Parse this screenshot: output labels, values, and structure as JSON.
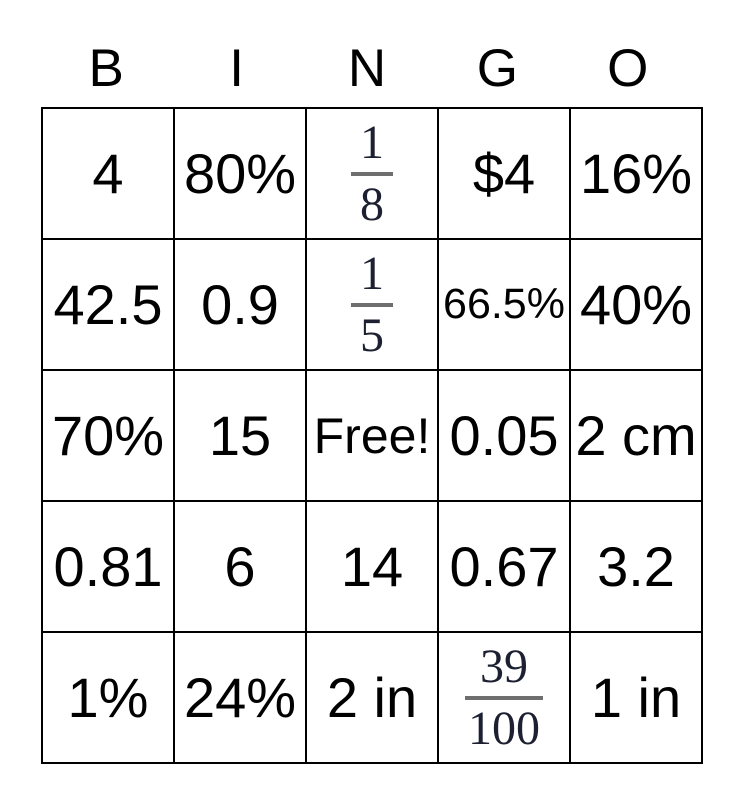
{
  "card": {
    "header_letters": [
      "B",
      "I",
      "N",
      "G",
      "O"
    ],
    "grid": {
      "rows": [
        [
          {
            "type": "text",
            "value": "4"
          },
          {
            "type": "text",
            "value": "80%"
          },
          {
            "type": "fraction",
            "numerator": "1",
            "denominator": "8"
          },
          {
            "type": "text",
            "value": "$4"
          },
          {
            "type": "text",
            "value": "16%"
          }
        ],
        [
          {
            "type": "text",
            "value": "42.5"
          },
          {
            "type": "text",
            "value": "0.9"
          },
          {
            "type": "fraction",
            "numerator": "1",
            "denominator": "5"
          },
          {
            "type": "text",
            "value": "66.5%"
          },
          {
            "type": "text",
            "value": "40%"
          }
        ],
        [
          {
            "type": "text",
            "value": "70%"
          },
          {
            "type": "text",
            "value": "15"
          },
          {
            "type": "text",
            "value": "Free!",
            "free_space": true
          },
          {
            "type": "text",
            "value": "0.05"
          },
          {
            "type": "text",
            "value": "2 cm"
          }
        ],
        [
          {
            "type": "text",
            "value": "0.81"
          },
          {
            "type": "text",
            "value": "6"
          },
          {
            "type": "text",
            "value": "14"
          },
          {
            "type": "text",
            "value": "0.67"
          },
          {
            "type": "text",
            "value": "3.2"
          }
        ],
        [
          {
            "type": "text",
            "value": "1%"
          },
          {
            "type": "text",
            "value": "24%"
          },
          {
            "type": "text",
            "value": "2 in"
          },
          {
            "type": "fraction",
            "numerator": "39",
            "denominator": "100"
          },
          {
            "type": "text",
            "value": "1 in"
          }
        ]
      ]
    },
    "colors": {
      "background": "#ffffff",
      "grid_border": "#000000",
      "text": "#000000",
      "fraction_text": "#1c2030",
      "fraction_bar": "#6e6e6e"
    }
  }
}
